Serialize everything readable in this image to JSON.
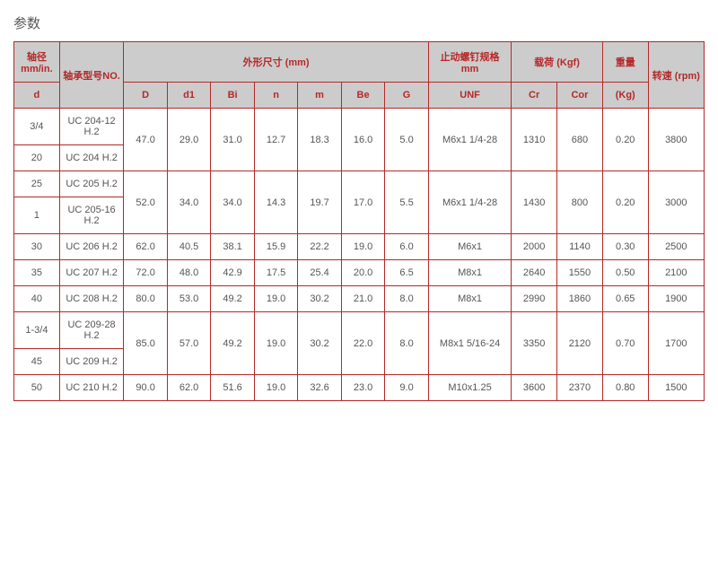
{
  "title": "参数",
  "header": {
    "diameter": "轴径 mm/in.",
    "bearingNo": "轴承型号NO.",
    "dimensions": "外形尺寸 (mm)",
    "setScrew": "止动螺钉规格 mm",
    "load": "载荷 (Kgf)",
    "weight": "重量",
    "speed": "转速 (rpm)",
    "d": "d",
    "D": "D",
    "d1": "d1",
    "Bi": "Bi",
    "n": "n",
    "m": "m",
    "Be": "Be",
    "G": "G",
    "UNF": "UNF",
    "Cr": "Cr",
    "Cor": "Cor",
    "Kg": "(Kg)"
  },
  "rows": {
    "r1": {
      "d": "3/4",
      "no": "UC 204-12 H.2"
    },
    "r2": {
      "d": "20",
      "no": "UC 204 H.2",
      "D": "47.0",
      "d1": "29.0",
      "Bi": "31.0",
      "n": "12.7",
      "m": "18.3",
      "Be": "16.0",
      "G": "5.0",
      "unf": "M6x1 1/4-28",
      "cr": "1310",
      "cor": "680",
      "kg": "0.20",
      "rpm": "3800"
    },
    "r3": {
      "d": "25",
      "no": "UC 205 H.2"
    },
    "r4": {
      "d": "1",
      "no": "UC 205-16 H.2",
      "D": "52.0",
      "d1": "34.0",
      "Bi": "34.0",
      "n": "14.3",
      "m": "19.7",
      "Be": "17.0",
      "G": "5.5",
      "unf": "M6x1 1/4-28",
      "cr": "1430",
      "cor": "800",
      "kg": "0.20",
      "rpm": "3000"
    },
    "r5": {
      "d": "30",
      "no": "UC 206 H.2",
      "D": "62.0",
      "d1": "40.5",
      "Bi": "38.1",
      "n": "15.9",
      "m": "22.2",
      "Be": "19.0",
      "G": "6.0",
      "unf": "M6x1",
      "cr": "2000",
      "cor": "1140",
      "kg": "0.30",
      "rpm": "2500"
    },
    "r6": {
      "d": "35",
      "no": "UC 207 H.2",
      "D": "72.0",
      "d1": "48.0",
      "Bi": "42.9",
      "n": "17.5",
      "m": "25.4",
      "Be": "20.0",
      "G": "6.5",
      "unf": "M8x1",
      "cr": "2640",
      "cor": "1550",
      "kg": "0.50",
      "rpm": "2100"
    },
    "r7": {
      "d": "40",
      "no": "UC 208 H.2",
      "D": "80.0",
      "d1": "53.0",
      "Bi": "49.2",
      "n": "19.0",
      "m": "30.2",
      "Be": "21.0",
      "G": "8.0",
      "unf": "M8x1",
      "cr": "2990",
      "cor": "1860",
      "kg": "0.65",
      "rpm": "1900"
    },
    "r8": {
      "d": "1-3/4",
      "no": "UC 209-28 H.2"
    },
    "r9": {
      "d": "45",
      "no": "UC 209 H.2",
      "D": "85.0",
      "d1": "57.0",
      "Bi": "49.2",
      "n": "19.0",
      "m": "30.2",
      "Be": "22.0",
      "G": "8.0",
      "unf": "M8x1 5/16-24",
      "cr": "3350",
      "cor": "2120",
      "kg": "0.70",
      "rpm": "1700"
    },
    "r10": {
      "d": "50",
      "no": "UC 210 H.2",
      "D": "90.0",
      "d1": "62.0",
      "Bi": "51.6",
      "n": "19.0",
      "m": "32.6",
      "Be": "23.0",
      "G": "9.0",
      "unf": "M10x1.25",
      "cr": "3600",
      "cor": "2370",
      "kg": "0.80",
      "rpm": "1500"
    }
  },
  "style": {
    "border_color": "#b52828",
    "header_bg": "#cccccc",
    "header_fg": "#b52828",
    "body_fg": "#555555",
    "font_size_pt": 11
  }
}
